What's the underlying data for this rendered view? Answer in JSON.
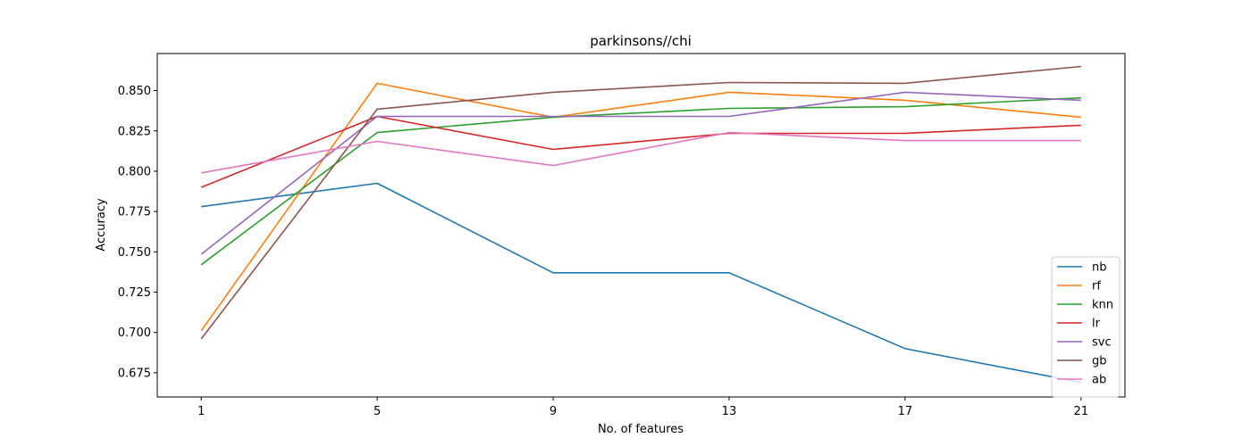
{
  "chart_data": {
    "type": "line",
    "title": "parkinsons//chi",
    "xlabel": "No. of features",
    "ylabel": "Accuracy",
    "x": [
      1,
      5,
      9,
      13,
      17,
      21
    ],
    "xticks": [
      "1",
      "5",
      "9",
      "13",
      "17",
      "21"
    ],
    "yticks": [
      "0.675",
      "0.700",
      "0.725",
      "0.750",
      "0.775",
      "0.800",
      "0.825",
      "0.850"
    ],
    "ytick_values": [
      0.675,
      0.7,
      0.725,
      0.75,
      0.775,
      0.8,
      0.825,
      0.85
    ],
    "xlim": [
      0,
      22
    ],
    "ylim": [
      0.66,
      0.873
    ],
    "grid": false,
    "legend_position": "lower-right",
    "series": [
      {
        "name": "nb",
        "color": "#1f77b4",
        "values": [
          0.778,
          0.7925,
          0.737,
          0.737,
          0.69,
          0.669
        ]
      },
      {
        "name": "rf",
        "color": "#ff7f0e",
        "values": [
          0.701,
          0.8545,
          0.8335,
          0.849,
          0.844,
          0.8335
        ]
      },
      {
        "name": "knn",
        "color": "#2ca02c",
        "values": [
          0.742,
          0.824,
          0.8335,
          0.839,
          0.84,
          0.8455
        ]
      },
      {
        "name": "lr",
        "color": "#d62728",
        "values": [
          0.79,
          0.834,
          0.8135,
          0.8235,
          0.8235,
          0.8285
        ]
      },
      {
        "name": "svc",
        "color": "#9467bd",
        "values": [
          0.7485,
          0.834,
          0.834,
          0.834,
          0.849,
          0.844
        ]
      },
      {
        "name": "gb",
        "color": "#8c564b",
        "values": [
          0.696,
          0.8385,
          0.849,
          0.855,
          0.8545,
          0.865
        ]
      },
      {
        "name": "ab",
        "color": "#e377c2",
        "values": [
          0.799,
          0.8185,
          0.8035,
          0.824,
          0.819,
          0.819
        ]
      }
    ]
  }
}
